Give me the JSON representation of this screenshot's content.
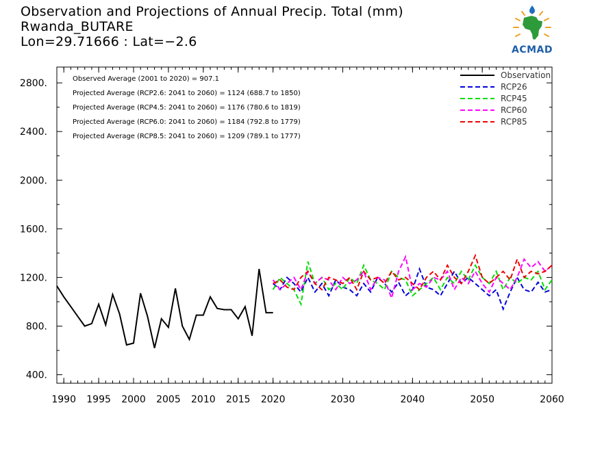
{
  "header": {
    "title": "Observation and Projections of Annual Precip. Total (mm)",
    "location": "Rwanda_BUTARE",
    "coords": "Lon=29.71666 : Lat=−2.6"
  },
  "logo": {
    "text": "ACMAD",
    "icon": "africa-map-logo"
  },
  "annotations": [
    "Observed Average (2001 to 2020) = 907.1",
    "Projected Average (RCP2.6: 2041 to 2060) = 1124 (688.7 to 1850)",
    "Projected Average (RCP4.5: 2041 to 2060) = 1176 (780.6 to 1819)",
    "Projected Average (RCP6.0: 2041 to 2060) = 1184 (792.8 to 1779)",
    "Projected Average (RCP8.5: 2041 to 2060) = 1209 (789.1 to 1777)"
  ],
  "colors": {
    "observation": "#000000",
    "rcp26": "#0000dd",
    "rcp45": "#00dd00",
    "rcp60": "#ff00ff",
    "rcp85": "#ee0000"
  },
  "chart_data": {
    "type": "line",
    "xlim": [
      1989,
      2060
    ],
    "ylim": [
      330,
      2930
    ],
    "x_ticks": [
      1990,
      1995,
      2000,
      2005,
      2010,
      2015,
      2020,
      2030,
      2040,
      2050,
      2060
    ],
    "x_tick_labels": [
      "1990",
      "1995",
      "2000",
      "2005",
      "2010",
      "2015",
      "2020",
      "2030",
      "2040",
      "2050",
      "2060"
    ],
    "y_ticks": [
      400,
      800,
      1200,
      1600,
      2000,
      2400,
      2800
    ],
    "y_tick_labels": [
      "400.",
      "800.",
      "1200.",
      "1600.",
      "2000.",
      "2400.",
      "2800."
    ],
    "legend_position": "top-right",
    "series": [
      {
        "name": "Observation",
        "style": "solid",
        "color": "#000000",
        "x": [
          1989,
          1990,
          1991,
          1992,
          1993,
          1994,
          1995,
          1996,
          1997,
          1998,
          1999,
          2000,
          2001,
          2002,
          2003,
          2004,
          2005,
          2006,
          2007,
          2008,
          2009,
          2010,
          2011,
          2012,
          2013,
          2014,
          2015,
          2016,
          2017,
          2018,
          2019,
          2020
        ],
        "y": [
          1130,
          1040,
          960,
          880,
          800,
          820,
          980,
          810,
          1060,
          900,
          645,
          660,
          1070,
          880,
          620,
          860,
          790,
          1110,
          800,
          690,
          890,
          890,
          1040,
          945,
          935,
          935,
          860,
          960,
          720,
          1270,
          910,
          910
        ]
      },
      {
        "name": "RCP26",
        "style": "dashed",
        "color": "#0000dd",
        "x": [
          2020,
          2021,
          2022,
          2023,
          2024,
          2025,
          2026,
          2027,
          2028,
          2029,
          2030,
          2031,
          2032,
          2033,
          2034,
          2035,
          2036,
          2037,
          2038,
          2039,
          2040,
          2041,
          2042,
          2043,
          2044,
          2045,
          2046,
          2047,
          2048,
          2049,
          2050,
          2051,
          2052,
          2053,
          2054,
          2055,
          2056,
          2057,
          2058,
          2059,
          2060
        ],
        "y": [
          1150,
          1100,
          1200,
          1150,
          1080,
          1200,
          1080,
          1150,
          1050,
          1180,
          1120,
          1100,
          1050,
          1150,
          1080,
          1200,
          1150,
          1080,
          1160,
          1050,
          1100,
          1270,
          1120,
          1100,
          1050,
          1150,
          1250,
          1150,
          1200,
          1150,
          1100,
          1050,
          1100,
          940,
          1080,
          1200,
          1100,
          1080,
          1160,
          1080,
          1100
        ]
      },
      {
        "name": "RCP45",
        "style": "dashed",
        "color": "#00dd00",
        "x": [
          2020,
          2021,
          2022,
          2023,
          2024,
          2025,
          2026,
          2027,
          2028,
          2029,
          2030,
          2031,
          2032,
          2033,
          2034,
          2035,
          2036,
          2037,
          2038,
          2039,
          2040,
          2041,
          2042,
          2043,
          2044,
          2045,
          2046,
          2047,
          2048,
          2049,
          2050,
          2051,
          2052,
          2053,
          2054,
          2055,
          2056,
          2057,
          2058,
          2059,
          2060
        ],
        "y": [
          1100,
          1200,
          1150,
          1100,
          980,
          1330,
          1150,
          1200,
          1100,
          1150,
          1100,
          1200,
          1150,
          1300,
          1180,
          1150,
          1100,
          1250,
          1200,
          1180,
          1050,
          1100,
          1150,
          1200,
          1100,
          1200,
          1150,
          1250,
          1180,
          1300,
          1200,
          1150,
          1250,
          1100,
          1200,
          1150,
          1200,
          1180,
          1250,
          1100,
          1180
        ]
      },
      {
        "name": "RCP60",
        "style": "dashed",
        "color": "#ff00ff",
        "x": [
          2020,
          2021,
          2022,
          2023,
          2024,
          2025,
          2026,
          2027,
          2028,
          2029,
          2030,
          2031,
          2032,
          2033,
          2034,
          2035,
          2036,
          2037,
          2038,
          2039,
          2040,
          2041,
          2042,
          2043,
          2044,
          2045,
          2046,
          2047,
          2048,
          2049,
          2050,
          2051,
          2052,
          2053,
          2054,
          2055,
          2056,
          2057,
          2058,
          2059,
          2060
        ],
        "y": [
          1180,
          1100,
          1150,
          1200,
          1100,
          1250,
          1150,
          1200,
          1180,
          1100,
          1200,
          1150,
          1180,
          1250,
          1100,
          1200,
          1180,
          1030,
          1250,
          1370,
          1100,
          1150,
          1120,
          1200,
          1180,
          1250,
          1100,
          1200,
          1150,
          1250,
          1150,
          1080,
          1200,
          1150,
          1100,
          1200,
          1350,
          1280,
          1330,
          1250,
          1300
        ]
      },
      {
        "name": "RCP85",
        "style": "dashed",
        "color": "#ee0000",
        "x": [
          2020,
          2021,
          2022,
          2023,
          2024,
          2025,
          2026,
          2027,
          2028,
          2029,
          2030,
          2031,
          2032,
          2033,
          2034,
          2035,
          2036,
          2037,
          2038,
          2039,
          2040,
          2041,
          2042,
          2043,
          2044,
          2045,
          2046,
          2047,
          2048,
          2049,
          2050,
          2051,
          2052,
          2053,
          2054,
          2055,
          2056,
          2057,
          2058,
          2059,
          2060
        ],
        "y": [
          1150,
          1180,
          1120,
          1100,
          1200,
          1250,
          1150,
          1100,
          1200,
          1180,
          1150,
          1200,
          1100,
          1250,
          1180,
          1200,
          1150,
          1250,
          1180,
          1200,
          1150,
          1100,
          1200,
          1250,
          1180,
          1300,
          1200,
          1150,
          1250,
          1380,
          1200,
          1150,
          1200,
          1250,
          1180,
          1350,
          1200,
          1250,
          1230,
          1250,
          1300
        ]
      }
    ]
  }
}
